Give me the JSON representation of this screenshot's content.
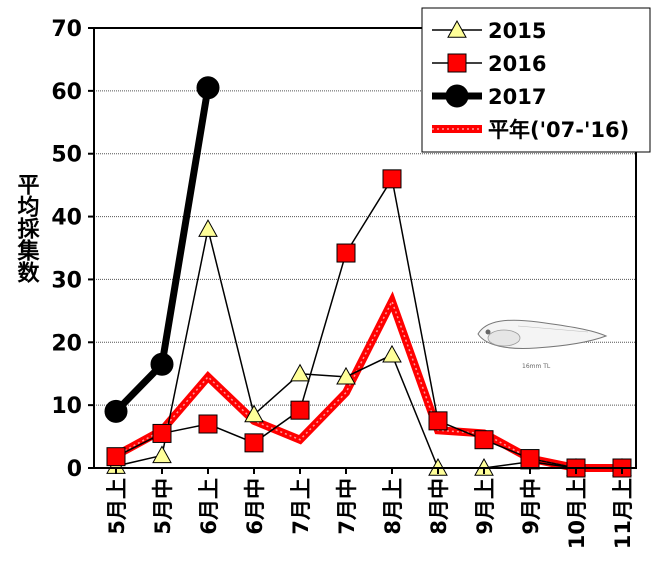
{
  "chart_data": {
    "type": "line",
    "ylabel": "平均採集数",
    "ylim": [
      0,
      70
    ],
    "yticks": [
      "0",
      "10",
      "20",
      "30",
      "40",
      "50",
      "60",
      "70"
    ],
    "categories": [
      "5月上",
      "5月中",
      "6月上",
      "6月中",
      "7月上",
      "7月中",
      "8月上",
      "8月中",
      "9月上",
      "9月中",
      "10月上",
      "11月上"
    ],
    "grid": true,
    "legend_position": "top-right",
    "series": [
      {
        "name": "2015",
        "marker": "triangle",
        "color": "#ffff99",
        "values": [
          0.3,
          2.0,
          38.0,
          8.5,
          15.0,
          14.5,
          18.0,
          0.0,
          0.0,
          1.0,
          0.0,
          0.0
        ]
      },
      {
        "name": "2016",
        "marker": "square",
        "color": "#ff0000",
        "values": [
          1.8,
          5.5,
          7.0,
          4.0,
          9.2,
          34.2,
          46.0,
          7.5,
          4.5,
          1.5,
          0.0,
          0.0
        ]
      },
      {
        "name": "2017",
        "marker": "circle",
        "color": "#000000",
        "values": [
          9.0,
          16.5,
          60.5,
          null,
          null,
          null,
          null,
          null,
          null,
          null,
          null,
          null
        ]
      },
      {
        "name": "平年('07-'16)",
        "marker": "none",
        "color": "#ff0000",
        "values": [
          2.0,
          6.0,
          14.5,
          7.5,
          4.5,
          12.0,
          26.5,
          6.0,
          5.5,
          1.5,
          0.0,
          0.0
        ]
      }
    ],
    "annotation": "16mm TL"
  }
}
